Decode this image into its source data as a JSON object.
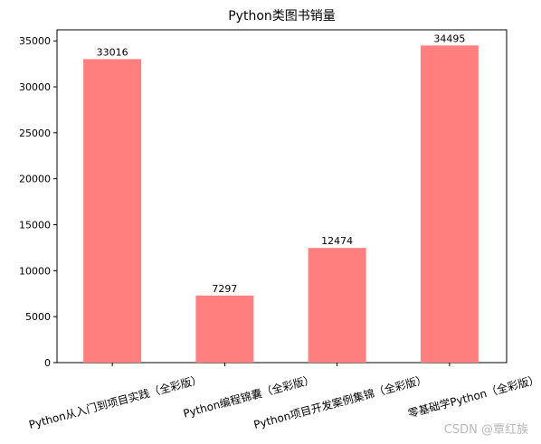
{
  "chart_data": {
    "type": "bar",
    "title": "Python类图书销量",
    "categories": [
      "Python从入门到项目实践（全彩版）",
      "Python编程锦囊（全彩版）",
      "Python项目开发案例集锦（全彩版）",
      "零基础学Python（全彩版）"
    ],
    "values": [
      33016,
      7297,
      12474,
      34495
    ],
    "ylim": [
      0,
      36200
    ],
    "yticks": [
      0,
      5000,
      10000,
      15000,
      20000,
      25000,
      30000,
      35000
    ],
    "bar_color": "#ff7f7f",
    "xlabel": "",
    "ylabel": "",
    "grid": false,
    "legend": "none"
  },
  "watermark": "CSDN @覃红族"
}
